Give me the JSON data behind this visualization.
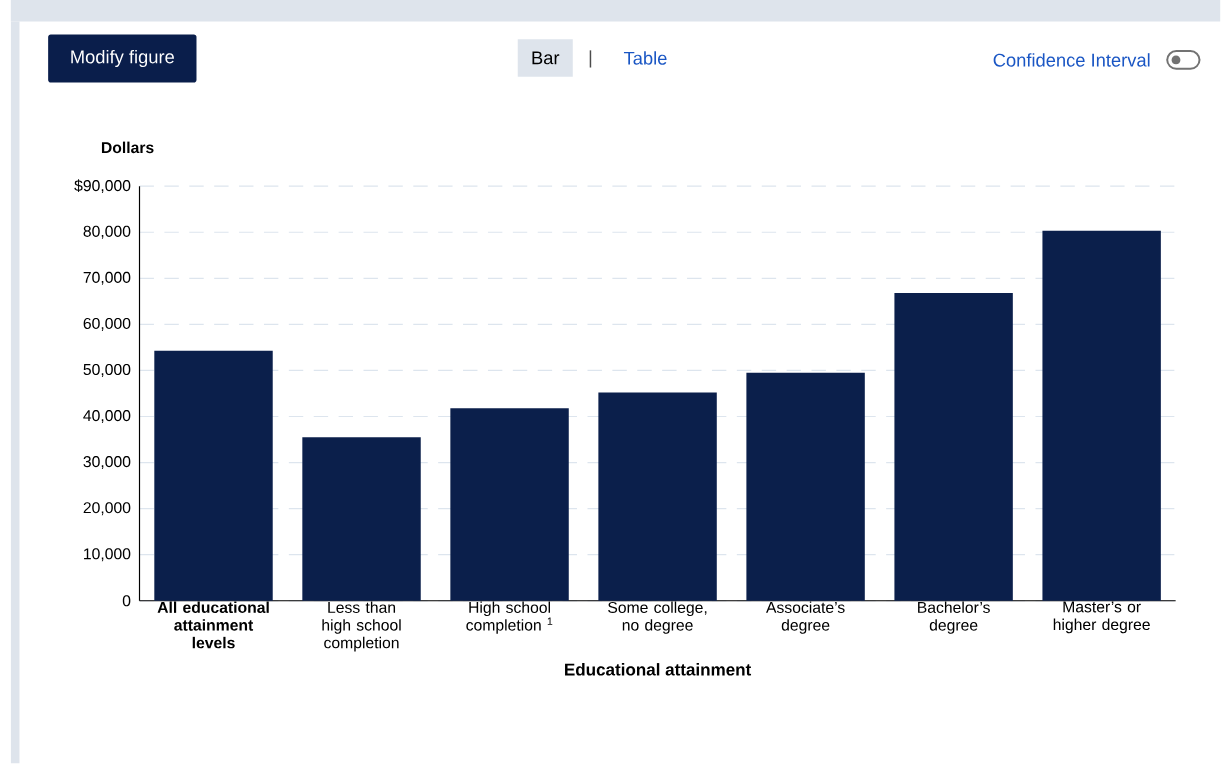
{
  "chart_data": {
    "type": "bar",
    "categories": [
      "**All educational attainment levels**",
      "Less than high school completion",
      "High school completion $^{1}$",
      "Some college, no degree",
      "Associate’s degree",
      "Bachelor’s degree",
      "Master’s or higher degree"
    ],
    "values": [
      54300,
      35500,
      41800,
      45200,
      49500,
      66800,
      80300
    ],
    "color": "#0b1f4b",
    "xlabel": "Educational attainment",
    "ylabel": "Dollars",
    "ylim": [
      0,
      90000
    ],
    "yticks": [
      0,
      {
        "value": 10000,
        "label": "10,000"
      },
      {
        "value": 20000,
        "label": "20,000"
      },
      {
        "value": 30000,
        "label": "30,000"
      },
      {
        "value": 40000,
        "label": "40,000"
      },
      {
        "value": 50000,
        "label": "50,000"
      },
      {
        "value": 60000,
        "label": "60,000"
      },
      {
        "value": 70000,
        "label": "70,000"
      },
      {
        "value": 80000,
        "label": "80,000"
      },
      {
        "value": 90000,
        "label": "$90,000"
      }
    ],
    "grid": "y",
    "annotations": [
      "Modify figure",
      "Bar",
      "|",
      "Table",
      "Confidence Interval"
    ]
  }
}
